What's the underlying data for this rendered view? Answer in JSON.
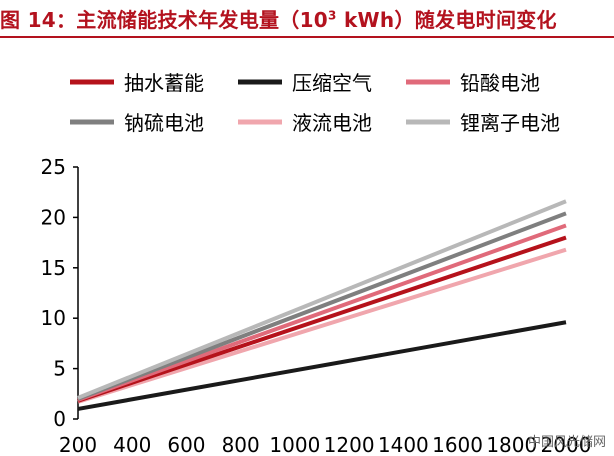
{
  "header": {
    "title_prefix": "图 14：主流储能技术年发电量（10",
    "title_sup": "3",
    "title_suffix": " kWh）随发电时间变化"
  },
  "watermark": "中国风光储网",
  "chart_data": {
    "type": "line",
    "title": "图 14：主流储能技术年发电量（10³ kWh）随发电时间变化",
    "xlabel": "",
    "ylabel": "",
    "x": [
      200,
      2000
    ],
    "xlim": [
      200,
      2000
    ],
    "ylim": [
      0,
      25
    ],
    "xticks": [
      200,
      400,
      600,
      800,
      1000,
      1200,
      1400,
      1600,
      1800,
      2000
    ],
    "yticks": [
      0,
      5,
      10,
      15,
      20,
      25
    ],
    "grid": false,
    "legend_position": "top",
    "series": [
      {
        "name": "抽水蓄能",
        "values": [
          1.8,
          18.0
        ],
        "color": "#b5121b"
      },
      {
        "name": "压缩空气",
        "values": [
          1.0,
          9.6
        ],
        "color": "#1a1a1a"
      },
      {
        "name": "铅酸电池",
        "values": [
          1.9,
          19.2
        ],
        "color": "#e06a7a"
      },
      {
        "name": "钠硫电池",
        "values": [
          2.0,
          20.4
        ],
        "color": "#7f7f7f"
      },
      {
        "name": "液流电池",
        "values": [
          1.7,
          16.8
        ],
        "color": "#f0a6ad"
      },
      {
        "name": "锂离子电池",
        "values": [
          2.1,
          21.6
        ],
        "color": "#b8b8b8"
      }
    ]
  }
}
